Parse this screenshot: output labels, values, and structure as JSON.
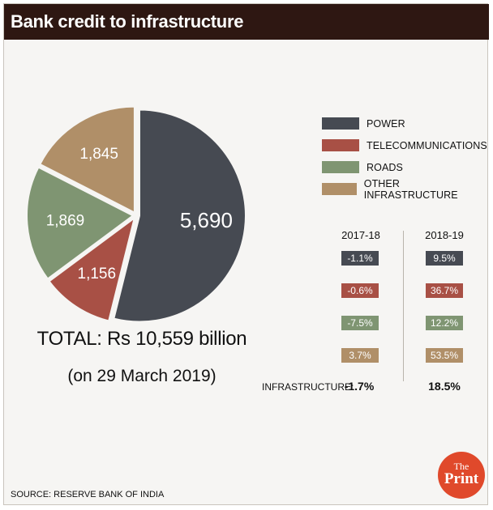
{
  "title": "Bank credit to infrastructure",
  "colors": {
    "power": "#464a52",
    "telecom": "#a85045",
    "roads": "#7f9572",
    "other": "#b08f68"
  },
  "chart_data": {
    "type": "pie",
    "title": "Bank credit to infrastructure",
    "slices": [
      {
        "name": "POWER",
        "value": 5690,
        "label": "5,690"
      },
      {
        "name": "TELECOMMUNICATIONS",
        "value": 1156,
        "label": "1,156"
      },
      {
        "name": "ROADS",
        "value": 1869,
        "label": "1,869"
      },
      {
        "name": "OTHER INFRASTRUCTURE",
        "value": 1845,
        "label": "1,845"
      }
    ],
    "total_text": "TOTAL: Rs 10,559 billion",
    "date_text": "(on 29 March 2019)",
    "legend_position": "right"
  },
  "legend": [
    {
      "label": "POWER"
    },
    {
      "label": "TELECOMMUNICATIONS"
    },
    {
      "label": "ROADS"
    },
    {
      "label": "OTHER INFRASTRUCTURE"
    }
  ],
  "growth_table": {
    "columns": [
      "2017-18",
      "2018-19"
    ],
    "rows": [
      {
        "name": "POWER",
        "values": [
          "-1.1%",
          "9.5%"
        ]
      },
      {
        "name": "TELECOMMUNICATIONS",
        "values": [
          "-0.6%",
          "36.7%"
        ]
      },
      {
        "name": "ROADS",
        "values": [
          "-7.5%",
          "12.2%"
        ]
      },
      {
        "name": "OTHER INFRASTRUCTURE",
        "values": [
          "3.7%",
          "53.5%"
        ]
      }
    ],
    "total_label": "INFRASTRUCTURE:",
    "total_values": [
      "-1.7%",
      "18.5%"
    ]
  },
  "source": "SOURCE: RESERVE BANK OF INDIA",
  "logo": {
    "top": "The",
    "bottom": "Print"
  }
}
